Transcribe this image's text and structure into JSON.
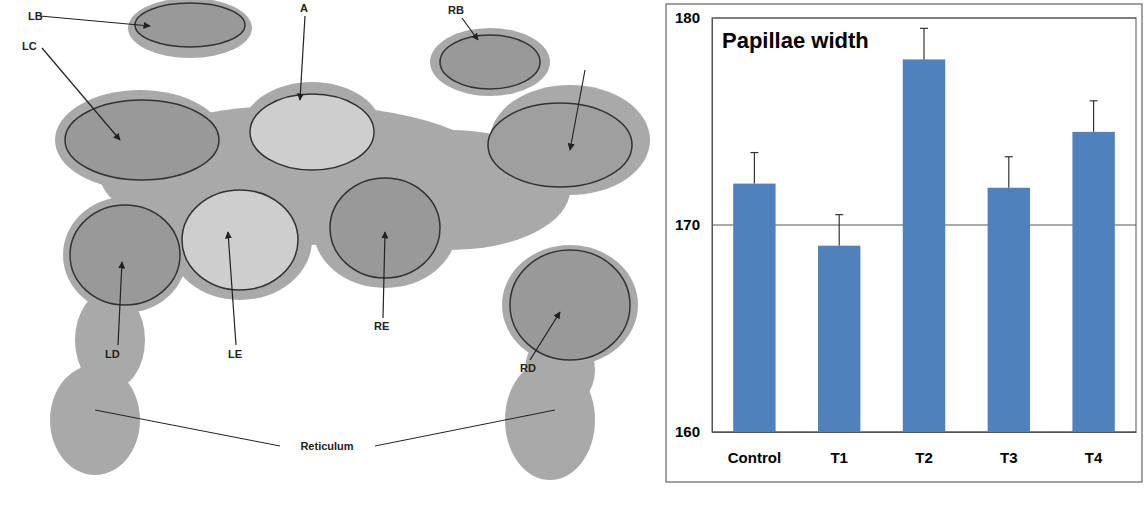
{
  "chart_data": {
    "type": "bar",
    "title": "Papillae width",
    "categories": [
      "Control",
      "T1",
      "T2",
      "T3",
      "T4"
    ],
    "values": [
      172,
      169,
      178,
      171.8,
      174.5
    ],
    "errors": [
      1.5,
      1.5,
      1.5,
      1.5,
      1.5
    ],
    "color": "#4f81bd",
    "ylim": [
      160,
      180
    ],
    "yticks": [
      160,
      170,
      180
    ],
    "grid": true
  },
  "diagram": {
    "labels": [
      "LB",
      "LC",
      "A",
      "RB",
      "LD",
      "LE",
      "RE",
      "RD",
      "Reticulum"
    ]
  }
}
